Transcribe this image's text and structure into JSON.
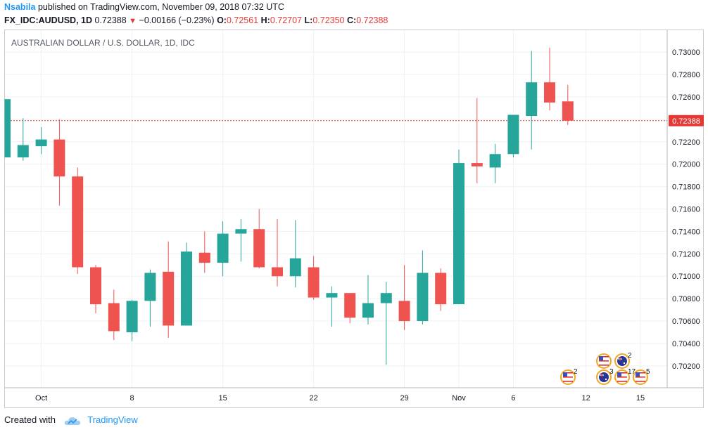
{
  "header": {
    "author": "Nsabila",
    "published": "published on TradingView.com, November 09, 2018 07:32 UTC",
    "symbol": "FX_IDC:AUDUSD, 1D",
    "last": "0.72388",
    "change_arrow": "▼",
    "change": "−0.00166 (−0.23%)",
    "o_label": "O:",
    "o_value": "0.72561",
    "h_label": "H:",
    "h_value": "0.72707",
    "l_label": "L:",
    "l_value": "0.72350",
    "c_label": "C:",
    "c_value": "0.72388"
  },
  "footer": {
    "created_with": "Created with",
    "brand": "TradingView"
  },
  "colors": {
    "up": "#26a69a",
    "down": "#ef5350",
    "price_line": "#e53935",
    "grid": "#eef0f3",
    "axis_text": "#131722",
    "event_ring": "#f5a623"
  },
  "chart_data": {
    "type": "candlestick",
    "title": "AUSTRALIAN DOLLAR / U.S. DOLLAR, 1D, IDC",
    "ylim": [
      0.70005,
      0.73195
    ],
    "y_ticks": [
      "0.73000",
      "0.72800",
      "0.72600",
      "0.72400",
      "0.72200",
      "0.72000",
      "0.71800",
      "0.71600",
      "0.71400",
      "0.71200",
      "0.71000",
      "0.70800",
      "0.70600",
      "0.70400",
      "0.70200"
    ],
    "x_ticks": [
      {
        "label": "Oct",
        "index": 2
      },
      {
        "label": "8",
        "index": 7
      },
      {
        "label": "15",
        "index": 12
      },
      {
        "label": "22",
        "index": 17
      },
      {
        "label": "29",
        "index": 22
      },
      {
        "label": "Nov",
        "index": 25
      },
      {
        "label": "6",
        "index": 28
      },
      {
        "label": "12",
        "index": 32
      },
      {
        "label": "15",
        "index": 35
      }
    ],
    "current_price": 0.72388,
    "current_price_label": "0.72388",
    "candles": [
      {
        "o": 0.7206,
        "h": 0.7258,
        "l": 0.7206,
        "c": 0.7258
      },
      {
        "o": 0.7206,
        "h": 0.7241,
        "l": 0.7203,
        "c": 0.7217
      },
      {
        "o": 0.7216,
        "h": 0.7233,
        "l": 0.7209,
        "c": 0.7222
      },
      {
        "o": 0.7222,
        "h": 0.724,
        "l": 0.7163,
        "c": 0.7189
      },
      {
        "o": 0.7189,
        "h": 0.7197,
        "l": 0.7102,
        "c": 0.7108
      },
      {
        "o": 0.7108,
        "h": 0.711,
        "l": 0.7067,
        "c": 0.7075
      },
      {
        "o": 0.7076,
        "h": 0.7088,
        "l": 0.7043,
        "c": 0.7051
      },
      {
        "o": 0.705,
        "h": 0.7079,
        "l": 0.7042,
        "c": 0.7078
      },
      {
        "o": 0.7078,
        "h": 0.7106,
        "l": 0.7055,
        "c": 0.7103
      },
      {
        "o": 0.7104,
        "h": 0.7131,
        "l": 0.7045,
        "c": 0.7056
      },
      {
        "o": 0.7056,
        "h": 0.713,
        "l": 0.7056,
        "c": 0.7122
      },
      {
        "o": 0.7121,
        "h": 0.714,
        "l": 0.7103,
        "c": 0.7112
      },
      {
        "o": 0.7112,
        "h": 0.7149,
        "l": 0.71,
        "c": 0.7138
      },
      {
        "o": 0.7138,
        "h": 0.7151,
        "l": 0.7113,
        "c": 0.7142
      },
      {
        "o": 0.7142,
        "h": 0.716,
        "l": 0.7107,
        "c": 0.7108
      },
      {
        "o": 0.7108,
        "h": 0.7151,
        "l": 0.7091,
        "c": 0.71
      },
      {
        "o": 0.71,
        "h": 0.715,
        "l": 0.709,
        "c": 0.7116
      },
      {
        "o": 0.7108,
        "h": 0.7118,
        "l": 0.7079,
        "c": 0.7081
      },
      {
        "o": 0.7081,
        "h": 0.7091,
        "l": 0.7055,
        "c": 0.7085
      },
      {
        "o": 0.7085,
        "h": 0.7085,
        "l": 0.7058,
        "c": 0.7063
      },
      {
        "o": 0.7063,
        "h": 0.7101,
        "l": 0.7057,
        "c": 0.7076
      },
      {
        "o": 0.7076,
        "h": 0.7095,
        "l": 0.7021,
        "c": 0.7085
      },
      {
        "o": 0.7078,
        "h": 0.711,
        "l": 0.7052,
        "c": 0.706
      },
      {
        "o": 0.706,
        "h": 0.7123,
        "l": 0.7057,
        "c": 0.7103
      },
      {
        "o": 0.7103,
        "h": 0.7107,
        "l": 0.7069,
        "c": 0.7075
      },
      {
        "o": 0.7075,
        "h": 0.7213,
        "l": 0.7075,
        "c": 0.7201
      },
      {
        "o": 0.7201,
        "h": 0.7259,
        "l": 0.7183,
        "c": 0.7198
      },
      {
        "o": 0.7197,
        "h": 0.7218,
        "l": 0.7183,
        "c": 0.7209
      },
      {
        "o": 0.7209,
        "h": 0.7244,
        "l": 0.7206,
        "c": 0.7244
      },
      {
        "o": 0.7243,
        "h": 0.7301,
        "l": 0.7213,
        "c": 0.7273
      },
      {
        "o": 0.7273,
        "h": 0.7304,
        "l": 0.7248,
        "c": 0.7255
      },
      {
        "o": 0.7256,
        "h": 0.72707,
        "l": 0.7235,
        "c": 0.72388
      }
    ],
    "events": [
      {
        "flag": "us",
        "count": "2"
      },
      {
        "flag": "us",
        "count": ""
      },
      {
        "flag": "au",
        "count": "2"
      },
      {
        "flag": "au",
        "count": "3"
      },
      {
        "flag": "us",
        "count": "17"
      },
      {
        "flag": "us",
        "count": "5"
      }
    ]
  }
}
